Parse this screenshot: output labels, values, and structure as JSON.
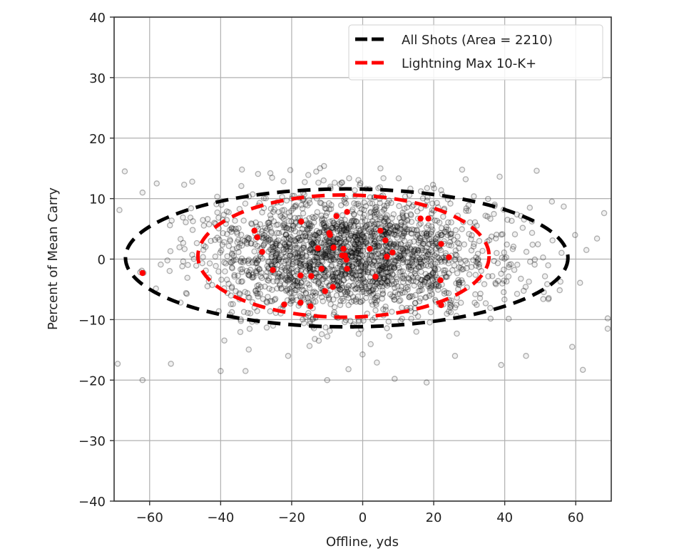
{
  "chart_data": {
    "type": "scatter",
    "title": "",
    "xlabel": "Offline, yds",
    "ylabel": "Percent of Mean Carry",
    "xlim": [
      -70,
      70
    ],
    "ylim": [
      -40,
      40
    ],
    "xticks": [
      -60,
      -40,
      -20,
      0,
      20,
      40,
      60
    ],
    "yticks": [
      -40,
      -30,
      -20,
      -10,
      0,
      10,
      20,
      30,
      40
    ],
    "xtick_labels": [
      "−60",
      "−40",
      "−20",
      "0",
      "20",
      "40",
      "60"
    ],
    "ytick_labels": [
      "−40",
      "−30",
      "−20",
      "−10",
      "0",
      "10",
      "20",
      "30",
      "40"
    ],
    "grid": true,
    "legend_position": "upper right",
    "legend": [
      {
        "label": "All Shots (Area = 2210)",
        "color": "#000000",
        "style": "dashed"
      },
      {
        "label": "Lightning Max 10-K+",
        "color": "#ff0000",
        "style": "dashed"
      }
    ],
    "ellipses": [
      {
        "name": "All Shots",
        "label": "All Shots (Area = 2210)",
        "color": "#000000",
        "center": [
          -4.5,
          0.2
        ],
        "semi_x": 62.3,
        "semi_y": 11.4,
        "area": 2210
      },
      {
        "name": "Lightning Max 10-K+",
        "label": "Lightning Max 10-K+",
        "color": "#ff0000",
        "center": [
          -5.4,
          0.5
        ],
        "semi_x": 41.0,
        "semi_y": 10.1
      }
    ],
    "series": [
      {
        "name": "All Shots",
        "marker": "circle-open",
        "color": "#000000",
        "alpha": 0.25,
        "count_approx": 2200,
        "distribution": {
          "mean_x": -4,
          "sd_x": 24,
          "mean_y": 0.5,
          "sd_y": 5.0,
          "x_range": [
            -70,
            70
          ],
          "y_range": [
            -21,
            16
          ]
        },
        "notable_points": [
          [
            -67,
            14.5
          ],
          [
            -62,
            11
          ],
          [
            -58,
            12.5
          ],
          [
            -48,
            12.8
          ],
          [
            -34,
            14.8
          ],
          [
            -26,
            14.2
          ],
          [
            5,
            15
          ],
          [
            -11,
            13
          ],
          [
            29,
            13.2
          ],
          [
            49,
            14.6
          ],
          [
            -69,
            -17.3
          ],
          [
            -62,
            -20
          ],
          [
            -54,
            -17.3
          ],
          [
            -40,
            -18.5
          ],
          [
            -33,
            -18.5
          ],
          [
            -21,
            -16
          ],
          [
            -10,
            -20
          ],
          [
            -4,
            -18.2
          ],
          [
            4,
            -17.1
          ],
          [
            9,
            -19.8
          ],
          [
            18,
            -20.4
          ],
          [
            26,
            -16
          ],
          [
            39,
            -17.5
          ],
          [
            46,
            -16
          ],
          [
            59,
            -14.5
          ],
          [
            62,
            -18.3
          ],
          [
            69,
            -11.5
          ],
          [
            69,
            -9.8
          ],
          [
            68,
            7.6
          ],
          [
            66,
            3.4
          ],
          [
            63,
            1.5
          ]
        ]
      },
      {
        "name": "Lightning Max 10-K+",
        "marker": "circle-filled",
        "color": "#ff0000",
        "points": [
          [
            -30.5,
            4.7
          ],
          [
            -29.7,
            3.6
          ],
          [
            -28.3,
            1.2
          ],
          [
            -25.3,
            -1.8
          ],
          [
            -17.3,
            6.2
          ],
          [
            -17.5,
            -2.7
          ],
          [
            -22.1,
            -7.5
          ],
          [
            -14.7,
            -7.8
          ],
          [
            -10.6,
            -5.3
          ],
          [
            -8.4,
            -4.6
          ],
          [
            -4.4,
            7.8
          ],
          [
            -7.4,
            7.1
          ],
          [
            -9.4,
            4.3
          ],
          [
            -9.2,
            4.0
          ],
          [
            -12.6,
            1.8
          ],
          [
            -8.2,
            1.9
          ],
          [
            -5.4,
            1.7
          ],
          [
            -5.8,
            0.6
          ],
          [
            -5.0,
            0.6
          ],
          [
            -4.6,
            -0.1
          ],
          [
            -11.6,
            -1.6
          ],
          [
            -4.4,
            -1.6
          ],
          [
            -14.5,
            -2.8
          ],
          [
            -17.5,
            -7.2
          ],
          [
            2.0,
            1.7
          ],
          [
            6.4,
            3.1
          ],
          [
            6.8,
            0.4
          ],
          [
            3.6,
            -2.9
          ],
          [
            5.0,
            4.7
          ],
          [
            8.4,
            1.1
          ],
          [
            16.3,
            6.7
          ],
          [
            18.5,
            6.7
          ],
          [
            22.1,
            2.5
          ],
          [
            24.3,
            0.3
          ],
          [
            21.9,
            -3.5
          ],
          [
            22.1,
            -7.6
          ],
          [
            -62.0,
            -2.3
          ]
        ]
      }
    ]
  }
}
